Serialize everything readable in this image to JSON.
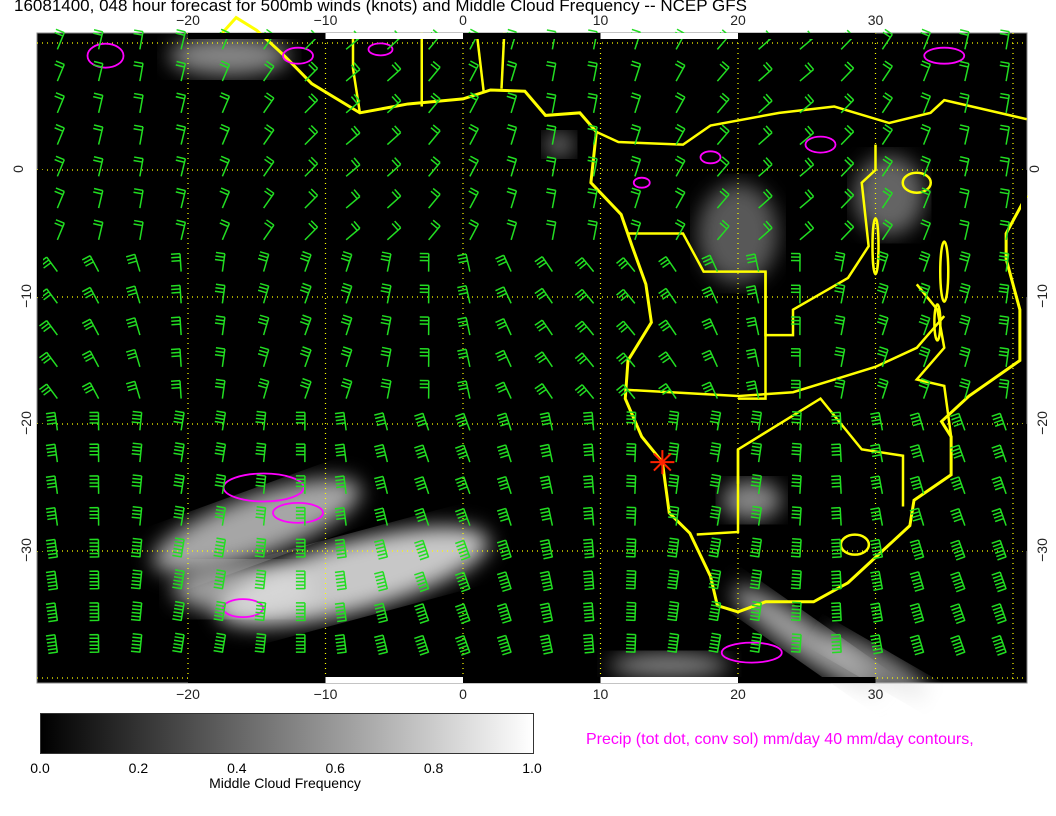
{
  "title": "16081400, 048 hour forecast for 500mb winds (knots) and Middle Cloud Frequency -- NCEP GFS",
  "axes": {
    "lon_ticks": [
      "−20",
      "−10",
      "0",
      "10",
      "20",
      "30"
    ],
    "lat_ticks": [
      "0",
      "−10",
      "−20",
      "−30"
    ],
    "lon_range": [
      -31,
      41
    ],
    "lat_range": [
      -40.4,
      10.8
    ]
  },
  "colorbar": {
    "ticks": [
      "0.0",
      "0.2",
      "0.4",
      "0.6",
      "0.8",
      "1.0"
    ],
    "label": "Middle Cloud Frequency",
    "range": [
      0,
      1
    ]
  },
  "precip_legend": "Precip (tot dot, conv sol) mm/day 40 mm/day contours,",
  "colors": {
    "background": "#000000",
    "wind_barbs": "#22dd22",
    "coastlines": "#ffff00",
    "precip_contours": "#ff00ff",
    "grid": "#ffff00",
    "marker": "#ff2200"
  },
  "marker": {
    "icon": "red-star-marker",
    "lon": 14.5,
    "lat": -23
  }
}
